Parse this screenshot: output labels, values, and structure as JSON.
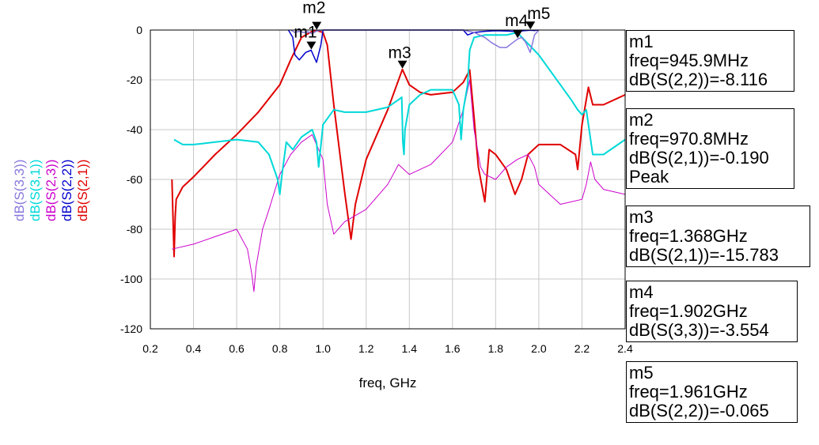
{
  "chart_data": {
    "type": "line",
    "xlabel": "freq, GHz",
    "ylabel": "",
    "xlim": [
      0.2,
      2.4
    ],
    "ylim": [
      -120,
      0
    ],
    "xticks": [
      "0.2",
      "0.4",
      "0.6",
      "0.8",
      "1.0",
      "1.2",
      "1.4",
      "1.6",
      "1.8",
      "2.0",
      "2.2",
      "2.4"
    ],
    "yticks": [
      "0",
      "-20",
      "-40",
      "-60",
      "-80",
      "-100",
      "-120"
    ],
    "grid": true,
    "legend_position": "left-vertical",
    "series": [
      {
        "name": "dB(S(2,1))",
        "color": "#e00000",
        "width": 2,
        "x": [
          0.3,
          0.305,
          0.31,
          0.315,
          0.32,
          0.35,
          0.4,
          0.5,
          0.6,
          0.7,
          0.8,
          0.85,
          0.9,
          0.95,
          0.97,
          1.0,
          1.02,
          1.05,
          1.1,
          1.13,
          1.15,
          1.2,
          1.3,
          1.368,
          1.4,
          1.45,
          1.5,
          1.6,
          1.65,
          1.68,
          1.7,
          1.72,
          1.75,
          1.77,
          1.8,
          1.85,
          1.89,
          1.92,
          1.95,
          2.0,
          2.1,
          2.17,
          2.18,
          2.2,
          2.23,
          2.25,
          2.3,
          2.4
        ],
        "y": [
          -60,
          -75,
          -91,
          -75,
          -68,
          -63,
          -59,
          -50,
          -42,
          -33,
          -22,
          -12,
          -3,
          -0.5,
          -0.19,
          -1,
          -6,
          -30,
          -65,
          -84,
          -70,
          -52,
          -32,
          -15.8,
          -22,
          -25,
          -26,
          -25,
          -21,
          -16,
          -35,
          -55,
          -69,
          -48,
          -50,
          -56,
          -66,
          -60,
          -50,
          -46,
          -46,
          -50,
          -56,
          -38,
          -23,
          -30,
          -30,
          -26
        ]
      },
      {
        "name": "dB(S(2,2))",
        "color": "#0000cc",
        "width": 1.5,
        "x": [
          0.84,
          0.86,
          0.87,
          0.89,
          0.92,
          0.945,
          0.97,
          0.99,
          1.0,
          1.65,
          1.67,
          1.7,
          1.75,
          1.8,
          1.85,
          1.9,
          1.93,
          1.961,
          1.98,
          2.0
        ],
        "y": [
          0,
          -3,
          -10,
          -12,
          -9,
          -8.1,
          -13,
          -6,
          0,
          0,
          -2,
          -1,
          -0.5,
          -0.3,
          -0.4,
          -0.6,
          -0.3,
          -0.065,
          -0.2,
          0
        ]
      },
      {
        "name": "dB(S(2,3))",
        "color": "#cc00cc",
        "width": 1,
        "x": [
          0.3,
          0.4,
          0.5,
          0.6,
          0.65,
          0.67,
          0.68,
          0.69,
          0.72,
          0.75,
          0.8,
          0.85,
          0.9,
          0.95,
          1.0,
          1.02,
          1.05,
          1.1,
          1.2,
          1.3,
          1.35,
          1.4,
          1.5,
          1.6,
          1.65,
          1.68,
          1.7,
          1.73,
          1.75,
          1.8,
          1.85,
          1.9,
          1.95,
          1.98,
          2.0,
          2.05,
          2.1,
          2.2,
          2.22,
          2.24,
          2.26,
          2.3,
          2.4
        ],
        "y": [
          -88,
          -86,
          -83,
          -80,
          -88,
          -98,
          -105,
          -95,
          -80,
          -72,
          -58,
          -50,
          -45,
          -42,
          -52,
          -70,
          -82,
          -77,
          -72,
          -62,
          -54,
          -58,
          -54,
          -45,
          -32,
          -20,
          -40,
          -55,
          -58,
          -60,
          -55,
          -52,
          -50,
          -55,
          -62,
          -66,
          -70,
          -68,
          -62,
          -53,
          -60,
          -64,
          -66
        ]
      },
      {
        "name": "dB(S(3,1))",
        "color": "#00d8d8",
        "width": 2,
        "x": [
          0.31,
          0.35,
          0.4,
          0.5,
          0.6,
          0.7,
          0.75,
          0.79,
          0.8,
          0.81,
          0.83,
          0.86,
          0.9,
          0.95,
          0.97,
          0.98,
          1.0,
          1.05,
          1.1,
          1.2,
          1.3,
          1.35,
          1.365,
          1.37,
          1.375,
          1.38,
          1.4,
          1.45,
          1.5,
          1.6,
          1.63,
          1.64,
          1.65,
          1.67,
          1.68,
          1.7,
          1.75,
          1.8,
          1.85,
          1.9,
          2.0,
          2.1,
          2.15,
          2.18,
          2.2,
          2.22,
          2.25,
          2.3,
          2.4
        ],
        "y": [
          -44,
          -46,
          -46,
          -45,
          -44,
          -45,
          -50,
          -60,
          -66,
          -58,
          -45,
          -48,
          -43,
          -40,
          -45,
          -55,
          -38,
          -32,
          -33,
          -33,
          -31,
          -28,
          -27,
          -45,
          -50,
          -40,
          -30,
          -26,
          -24,
          -24,
          -30,
          -44,
          -32,
          -22,
          -8,
          -3,
          -2,
          -2,
          -2,
          -1,
          -10,
          -22,
          -28,
          -32,
          -34,
          -32,
          -50,
          -50,
          -44
        ]
      },
      {
        "name": "dB(S(3,3))",
        "color": "#8877dd",
        "width": 1.5,
        "x": [
          0.85,
          0.87,
          0.89,
          0.91,
          0.93,
          0.95,
          0.97,
          1.0,
          1.65,
          1.7,
          1.75,
          1.78,
          1.82,
          1.85,
          1.88,
          1.902,
          1.92,
          1.94,
          1.96,
          1.98,
          2.0
        ],
        "y": [
          0,
          -1,
          -0.5,
          -1,
          -0.7,
          -1.5,
          -0.4,
          0,
          0,
          -1,
          -3,
          -5,
          -7,
          -7,
          -5,
          -3.6,
          -3,
          -5,
          -9,
          -2,
          0
        ]
      }
    ],
    "markers": [
      {
        "name": "m1",
        "label_text": "m1",
        "lines": [
          "m1",
          "freq=945.9MHz",
          "dB(S(2,2))=-8.116"
        ],
        "x": 0.9459,
        "y": -8.116
      },
      {
        "name": "m2",
        "label_text": "m2",
        "lines": [
          "m2",
          "freq=970.8MHz",
          "dB(S(2,1))=-0.190",
          "Peak"
        ],
        "x": 0.9708,
        "y": -0.19
      },
      {
        "name": "m3",
        "label_text": "m3",
        "lines": [
          "m3",
          "freq=1.368GHz",
          "dB(S(2,1))=-15.783"
        ],
        "x": 1.368,
        "y": -15.783
      },
      {
        "name": "m4",
        "label_text": "m4",
        "lines": [
          "m4",
          "freq=1.902GHz",
          "dB(S(3,3))=-3.554"
        ],
        "x": 1.902,
        "y": -3.554
      },
      {
        "name": "m5",
        "label_text": "m5",
        "lines": [
          "m5",
          "freq=1.961GHz",
          "dB(S(2,2))=-0.065"
        ],
        "x": 1.961,
        "y": -0.065
      }
    ]
  }
}
